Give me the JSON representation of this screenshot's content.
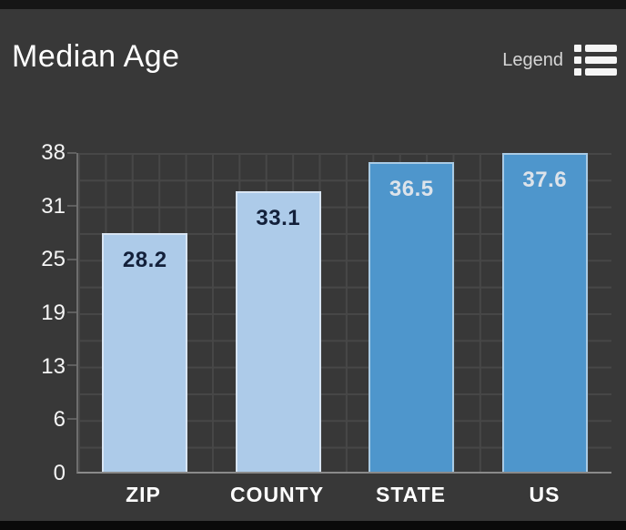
{
  "header": {
    "title": "Median Age",
    "legend_label": "Legend"
  },
  "colors": {
    "background": "#383838",
    "top_strip": "#161616",
    "bottom_strip": "#0a0a0a",
    "gridline": "#474747",
    "axis_line": "#6e6e6e",
    "baseline": "#8a8a8a",
    "axis_text": "#f5f5f5",
    "title_text": "#ffffff",
    "legend_text": "#d6d6d6",
    "light_bar_fill": "#adcbe9",
    "light_bar_border": "#d8e5f3",
    "light_bar_label": "#13203a",
    "dark_bar_fill": "#4e96cc",
    "dark_bar_border": "#a9cbe5",
    "dark_bar_label": "#dde3ea"
  },
  "chart_data": {
    "type": "bar",
    "title": "Median Age",
    "categories": [
      "ZIP",
      "COUNTY",
      "STATE",
      "US"
    ],
    "values": [
      28.2,
      33.1,
      36.5,
      37.6
    ],
    "value_labels": [
      "28.2",
      "33.1",
      "36.5",
      "37.6"
    ],
    "xlabel": "",
    "ylabel": "",
    "ylim": [
      0,
      37.6
    ],
    "ytick_labels": [
      "0",
      "6",
      "13",
      "19",
      "25",
      "31",
      "38"
    ],
    "grid": true,
    "legend_position": "top-right",
    "bar_styles": [
      {
        "fill": "#adcbe9",
        "border": "#d8e5f3",
        "label_color": "#13203a"
      },
      {
        "fill": "#adcbe9",
        "border": "#d8e5f3",
        "label_color": "#13203a"
      },
      {
        "fill": "#4e96cc",
        "border": "#a9cbe5",
        "label_color": "#dde3ea"
      },
      {
        "fill": "#4e96cc",
        "border": "#a9cbe5",
        "label_color": "#dde3ea"
      }
    ]
  }
}
